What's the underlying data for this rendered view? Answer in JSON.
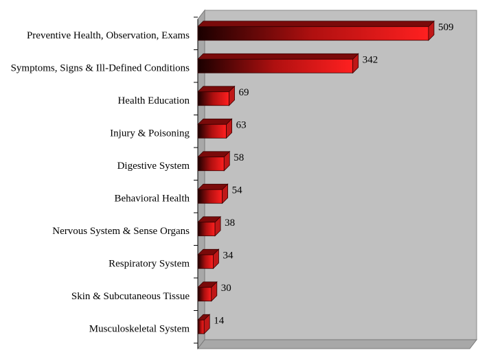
{
  "chart_data": {
    "type": "bar",
    "orientation": "horizontal",
    "categories": [
      "Preventive Health, Observation, Exams",
      "Symptoms, Signs & Ill-Defined Conditions",
      "Health Education",
      "Injury & Poisoning",
      "Digestive System",
      "Behavioral Health",
      "Nervous System & Sense Organs",
      "Respiratory System",
      "Skin & Subcutaneous Tissue",
      "Musculoskeletal System"
    ],
    "values": [
      509,
      342,
      69,
      63,
      58,
      54,
      38,
      34,
      30,
      14
    ],
    "color": "#ff2020",
    "xlim": [
      0,
      600
    ]
  }
}
